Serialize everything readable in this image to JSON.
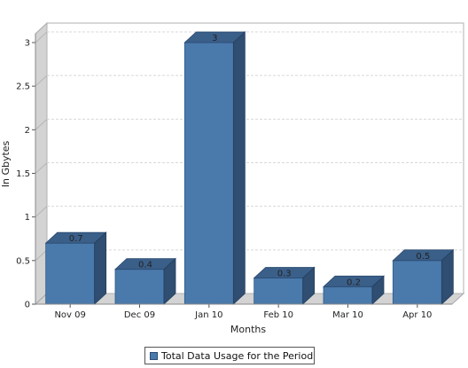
{
  "chart_data": {
    "type": "bar",
    "categories": [
      "Nov 09",
      "Dec 09",
      "Jan 10",
      "Feb 10",
      "Mar 10",
      "Apr 10"
    ],
    "series": [
      {
        "name": "Total Data Usage for the Period",
        "values": [
          0.7,
          0.4,
          3,
          0.3,
          0.2,
          0.5
        ],
        "value_labels": [
          "0.7",
          "0.4",
          "3",
          "0.3",
          "0.2",
          "0.5"
        ]
      }
    ],
    "xlabel": "Months",
    "ylabel": "In Gbytes",
    "ylim": [
      0,
      3
    ],
    "yticks": [
      "0",
      "0.5",
      "1",
      "1.5",
      "2",
      "2.5",
      "3"
    ],
    "grid": true,
    "legend_position": "bottom",
    "style": "3d",
    "colors": {
      "bar_front": "#4a7aac",
      "bar_top": "#3a5f89",
      "bar_side": "#2f4e71",
      "wall": "#d3d3d3",
      "grid": "#d8d8d8"
    }
  }
}
